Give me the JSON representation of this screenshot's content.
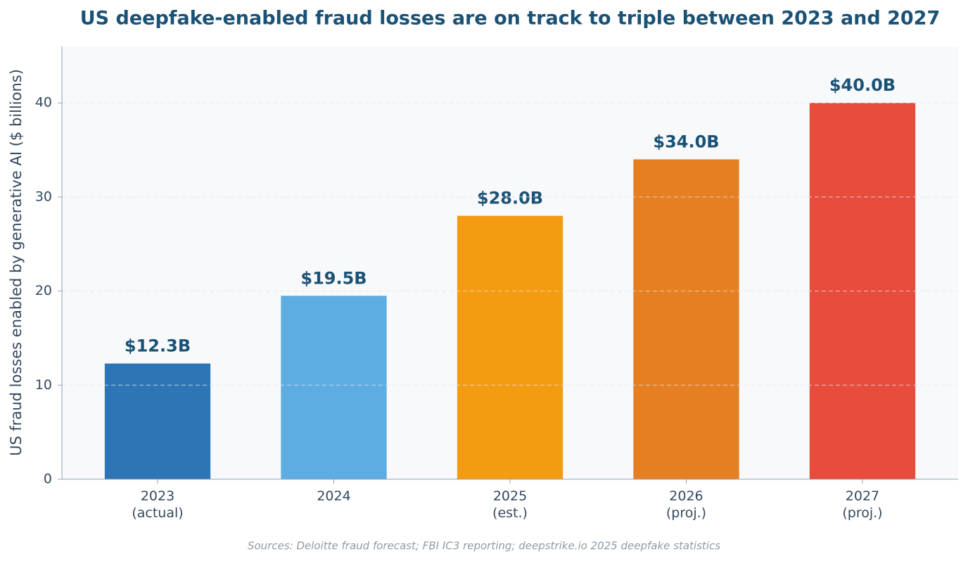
{
  "chart_data": {
    "type": "bar",
    "title": "US deepfake-enabled fraud losses are on track to triple between 2023 and 2027",
    "y_label": "US fraud losses enabled by generative AI ($ billions)",
    "source": "Sources: Deloitte fraud forecast; FBI IC3 reporting; deepstrike.io 2025 deepfake statistics",
    "categories": [
      "2023\n(actual)",
      "2024",
      "2025\n(est.)",
      "2026\n(proj.)",
      "2027\n(proj.)"
    ],
    "values": [
      12.3,
      19.5,
      28.0,
      34.0,
      40.0
    ],
    "value_labels": [
      "$12.3B",
      "$19.5B",
      "$28.0B",
      "$34.0B",
      "$40.0B"
    ],
    "colors": [
      "#2e75b6",
      "#5dade2",
      "#f39c12",
      "#e67e22",
      "#e74c3c"
    ],
    "ylim": [
      0,
      46
    ],
    "yticks": [
      0,
      10,
      20,
      30,
      40
    ],
    "grid": true
  }
}
